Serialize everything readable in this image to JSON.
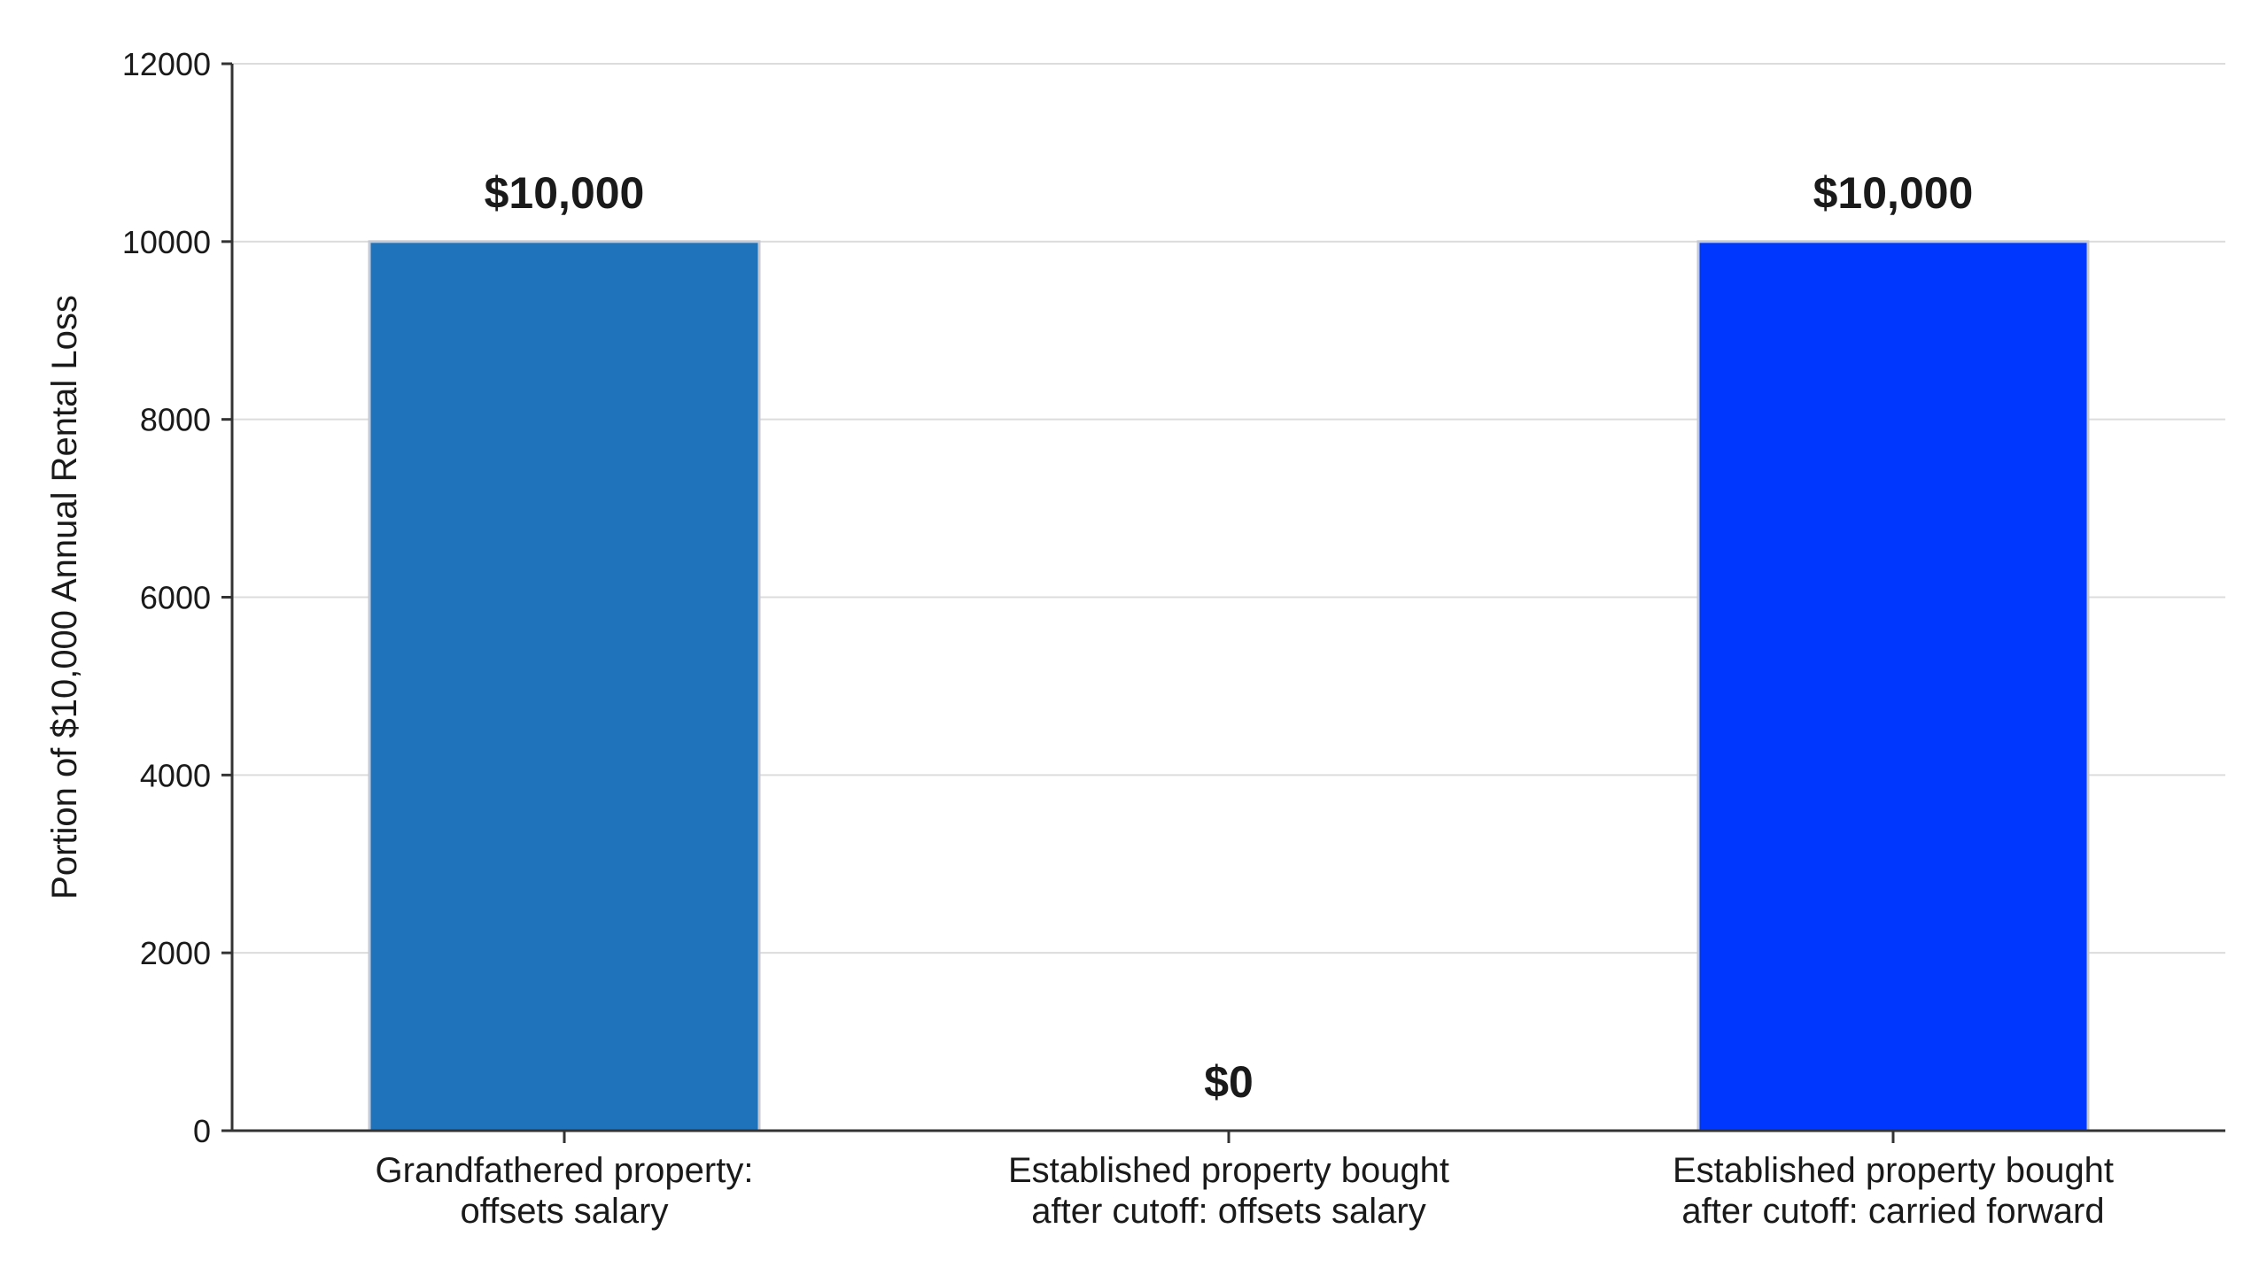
{
  "chart_data": {
    "type": "bar",
    "categories": [
      [
        "Grandfathered property:",
        "offsets salary"
      ],
      [
        "Established property bought",
        "after cutoff: offsets salary"
      ],
      [
        "Established property bought",
        "after cutoff: carried forward"
      ]
    ],
    "values": [
      10000,
      0,
      10000
    ],
    "data_labels": [
      "$10,000",
      "$0",
      "$10,000"
    ],
    "colors": [
      "#1f73bb",
      "#1f73bb",
      "#0037ff"
    ],
    "ylabel": "Portion of $10,000 Annual Rental Loss",
    "xlabel": "",
    "title": "",
    "ylim": [
      0,
      12000
    ],
    "yticks": [
      0,
      2000,
      4000,
      6000,
      8000,
      10000,
      12000
    ],
    "grid": "horizontal",
    "legend": "none"
  }
}
